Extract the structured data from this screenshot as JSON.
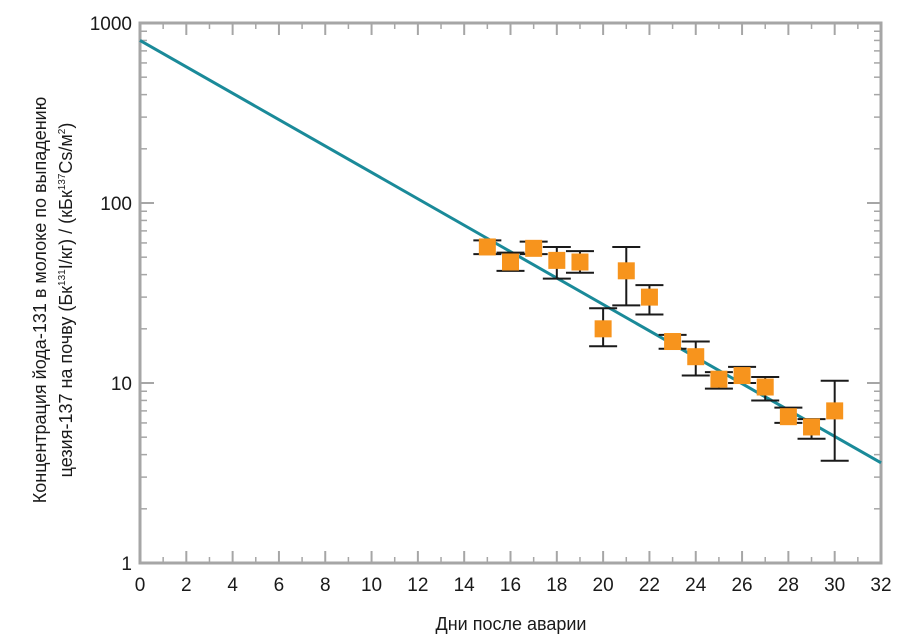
{
  "chart_data": {
    "type": "scatter",
    "xlabel": "Дни после аварии",
    "ylabel_line1": "Концентрация йода-131 в молоке по выпадению",
    "ylabel_line2_parts": [
      "цезия-137 на почву (Бк",
      "131",
      "I/кг) / (кБк",
      "137",
      "Cs/м",
      "2",
      ")"
    ],
    "xlim": [
      0,
      32
    ],
    "ylim": [
      1,
      1000
    ],
    "yscale": "log",
    "x_ticks": [
      0,
      2,
      4,
      6,
      8,
      10,
      12,
      14,
      16,
      18,
      20,
      22,
      24,
      26,
      28,
      30,
      32
    ],
    "x_tick_labels": [
      "0",
      "2",
      "4",
      "6",
      "8",
      "10",
      "12",
      "14",
      "16",
      "18",
      "20",
      "22",
      "24",
      "26",
      "28",
      "30",
      "32"
    ],
    "y_ticks": [
      1,
      10,
      100,
      1000
    ],
    "y_tick_labels": [
      "1",
      "10",
      "100",
      "1000"
    ],
    "grid": false,
    "colors": {
      "frame": "#a6a6a6",
      "points": "#f7941d",
      "fit_line": "#1a8a99",
      "error_bars": "#1a1a1a"
    },
    "points": [
      {
        "x": 15,
        "y": 57,
        "lo": 52,
        "hi": 62
      },
      {
        "x": 16,
        "y": 47,
        "lo": 42,
        "hi": 53
      },
      {
        "x": 17,
        "y": 56,
        "lo": 52,
        "hi": 61
      },
      {
        "x": 18,
        "y": 48,
        "lo": 38,
        "hi": 57
      },
      {
        "x": 19,
        "y": 47,
        "lo": 41,
        "hi": 54
      },
      {
        "x": 20,
        "y": 20,
        "lo": 16,
        "hi": 26
      },
      {
        "x": 21,
        "y": 42,
        "lo": 27,
        "hi": 57
      },
      {
        "x": 22,
        "y": 30,
        "lo": 24,
        "hi": 35
      },
      {
        "x": 23,
        "y": 17,
        "lo": 15.5,
        "hi": 18.5
      },
      {
        "x": 24,
        "y": 14,
        "lo": 11,
        "hi": 17
      },
      {
        "x": 25,
        "y": 10.5,
        "lo": 9.3,
        "hi": 11.5
      },
      {
        "x": 26,
        "y": 11,
        "lo": 10,
        "hi": 12.3
      },
      {
        "x": 27,
        "y": 9.5,
        "lo": 8,
        "hi": 10.8
      },
      {
        "x": 28,
        "y": 6.5,
        "lo": 6,
        "hi": 7.3
      },
      {
        "x": 29,
        "y": 5.7,
        "lo": 4.9,
        "hi": 6.3
      },
      {
        "x": 30,
        "y": 7,
        "lo": 3.7,
        "hi": 10.3
      }
    ],
    "fit_line": {
      "x": [
        0,
        32
      ],
      "y": [
        800,
        3.6
      ]
    }
  }
}
